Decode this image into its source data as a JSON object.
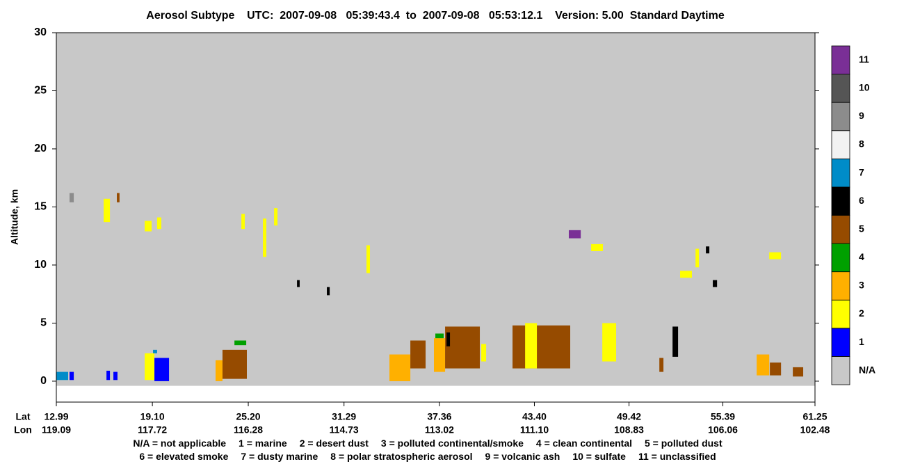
{
  "chart_data": {
    "type": "curtain",
    "title": "Aerosol Subtype    UTC:  2007-09-08   05:39:43.4  to  2007-09-08   05:53:12.1    Version: 5.00  Standard Daytime",
    "ylabel": "Altitude, km",
    "ylim": [
      -1.8,
      30
    ],
    "yticks": [
      0,
      5,
      10,
      15,
      20,
      25,
      30
    ],
    "xlim": [
      12.99,
      61.25
    ],
    "xticks": [
      12.99,
      {
        "value": 19.1,
        "label": "19.10"
      },
      {
        "value": 25.2,
        "label": "25.20"
      },
      31.29,
      37.36,
      {
        "value": 43.4,
        "label": "43.40"
      },
      49.42,
      55.39,
      61.25
    ],
    "x_row_labels": [
      "Lat",
      "Lon"
    ],
    "lon_labels": [
      "119.09",
      "117.72",
      "116.28",
      "114.73",
      "113.02",
      "111.10",
      "108.83",
      "106.06",
      "102.48"
    ],
    "surface_alt": -0.4,
    "legend": [
      {
        "label": "N/A",
        "color": "#c8c8c8"
      },
      {
        "label": "1",
        "color": "#0000ff"
      },
      {
        "label": "2",
        "color": "#ffff00"
      },
      {
        "label": "3",
        "color": "#ffb000"
      },
      {
        "label": "4",
        "color": "#00a000"
      },
      {
        "label": "5",
        "color": "#964b00"
      },
      {
        "label": "6",
        "color": "#000000"
      },
      {
        "label": "7",
        "color": "#008cc8"
      },
      {
        "label": "8",
        "color": "#f2f2f2"
      },
      {
        "label": "9",
        "color": "#8c8c8c"
      },
      {
        "label": "10",
        "color": "#555555"
      },
      {
        "label": "11",
        "color": "#7a2f96"
      }
    ],
    "key": [
      [
        "N/A = not applicable",
        "1 = marine",
        "2 = desert dust",
        "3 = polluted continental/smoke",
        "4 = clean continental",
        "5 = polluted dust"
      ],
      [
        "6 = elevated smoke",
        "7 = dusty marine",
        "8 = polar stratospheric aerosol",
        "9 = volcanic ash",
        "10 = sulfate",
        "11 = unclassified"
      ]
    ],
    "regions": [
      {
        "subtype": 7,
        "lat": [
          12.99,
          13.74
        ],
        "alt": [
          0.1,
          0.8
        ]
      },
      {
        "subtype": 1,
        "lat": [
          13.83,
          14.1
        ],
        "alt": [
          0.1,
          0.8
        ]
      },
      {
        "subtype": 1,
        "lat": [
          16.18,
          16.4
        ],
        "alt": [
          0.1,
          0.9
        ]
      },
      {
        "subtype": 1,
        "lat": [
          16.62,
          16.88
        ],
        "alt": [
          0.1,
          0.8
        ]
      },
      {
        "subtype": 2,
        "lat": [
          18.61,
          19.23
        ],
        "alt": [
          0.1,
          2.4
        ]
      },
      {
        "subtype": 1,
        "lat": [
          19.23,
          20.16
        ],
        "alt": [
          0.0,
          2.0
        ]
      },
      {
        "subtype": 7,
        "lat": [
          19.14,
          19.4
        ],
        "alt": [
          2.4,
          2.7
        ]
      },
      {
        "subtype": 3,
        "lat": [
          23.12,
          23.56
        ],
        "alt": [
          0.0,
          1.8
        ]
      },
      {
        "subtype": 5,
        "lat": [
          23.56,
          25.11
        ],
        "alt": [
          0.2,
          2.7
        ]
      },
      {
        "subtype": 4,
        "lat": [
          24.32,
          25.07
        ],
        "alt": [
          3.1,
          3.5
        ]
      },
      {
        "subtype": 2,
        "lat": [
          16.0,
          16.4
        ],
        "alt": [
          13.7,
          15.7
        ]
      },
      {
        "subtype": 2,
        "lat": [
          18.61,
          19.05
        ],
        "alt": [
          12.9,
          13.8
        ]
      },
      {
        "subtype": 2,
        "lat": [
          19.4,
          19.67
        ],
        "alt": [
          13.1,
          14.1
        ]
      },
      {
        "subtype": 2,
        "lat": [
          24.76,
          24.98
        ],
        "alt": [
          13.1,
          14.4
        ]
      },
      {
        "subtype": 2,
        "lat": [
          26.13,
          26.35
        ],
        "alt": [
          10.7,
          14.0
        ]
      },
      {
        "subtype": 2,
        "lat": [
          26.84,
          27.06
        ],
        "alt": [
          13.4,
          14.9
        ]
      },
      {
        "subtype": 9,
        "lat": [
          13.83,
          14.1
        ],
        "alt": [
          15.4,
          16.2
        ]
      },
      {
        "subtype": 6,
        "lat": [
          28.3,
          28.47
        ],
        "alt": [
          8.1,
          8.7
        ]
      },
      {
        "subtype": 6,
        "lat": [
          30.2,
          30.38
        ],
        "alt": [
          7.4,
          8.1
        ]
      },
      {
        "subtype": 2,
        "lat": [
          32.72,
          32.94
        ],
        "alt": [
          9.3,
          11.7
        ]
      },
      {
        "subtype": 3,
        "lat": [
          34.18,
          35.51
        ],
        "alt": [
          0.0,
          2.3
        ]
      },
      {
        "subtype": 5,
        "lat": [
          35.51,
          36.48
        ],
        "alt": [
          1.1,
          3.5
        ]
      },
      {
        "subtype": 3,
        "lat": [
          37.01,
          37.72
        ],
        "alt": [
          0.8,
          3.7
        ]
      },
      {
        "subtype": 4,
        "lat": [
          37.1,
          37.63
        ],
        "alt": [
          3.7,
          4.1
        ]
      },
      {
        "subtype": 5,
        "lat": [
          37.72,
          39.93
        ],
        "alt": [
          1.1,
          4.7
        ]
      },
      {
        "subtype": 2,
        "lat": [
          40.02,
          40.33
        ],
        "alt": [
          1.7,
          3.2
        ]
      },
      {
        "subtype": 5,
        "lat": [
          42.01,
          45.68
        ],
        "alt": [
          1.1,
          4.8
        ]
      },
      {
        "subtype": 2,
        "lat": [
          42.81,
          43.56
        ],
        "alt": [
          1.1,
          5.0
        ]
      },
      {
        "subtype": 11,
        "lat": [
          45.59,
          46.35
        ],
        "alt": [
          12.3,
          13.0
        ]
      },
      {
        "subtype": 2,
        "lat": [
          47.01,
          47.76
        ],
        "alt": [
          11.2,
          11.8
        ]
      },
      {
        "subtype": 2,
        "lat": [
          47.72,
          48.6
        ],
        "alt": [
          1.7,
          5.0
        ]
      },
      {
        "subtype": 6,
        "lat": [
          52.19,
          52.54
        ],
        "alt": [
          2.1,
          4.7
        ]
      },
      {
        "subtype": 2,
        "lat": [
          52.67,
          53.42
        ],
        "alt": [
          8.9,
          9.5
        ]
      },
      {
        "subtype": 6,
        "lat": [
          54.75,
          55.02
        ],
        "alt": [
          8.1,
          8.7
        ]
      },
      {
        "subtype": 2,
        "lat": [
          58.34,
          59.09
        ],
        "alt": [
          10.5,
          11.1
        ]
      },
      {
        "subtype": 3,
        "lat": [
          57.54,
          58.34
        ],
        "alt": [
          0.5,
          2.3
        ]
      },
      {
        "subtype": 5,
        "lat": [
          58.38,
          59.09
        ],
        "alt": [
          0.5,
          1.6
        ]
      },
      {
        "subtype": 5,
        "lat": [
          59.84,
          60.5
        ],
        "alt": [
          0.4,
          1.2
        ]
      },
      {
        "subtype": 5,
        "lat": [
          51.35,
          51.61
        ],
        "alt": [
          0.8,
          2.0
        ]
      },
      {
        "subtype": 2,
        "lat": [
          53.65,
          53.87
        ],
        "alt": [
          9.8,
          11.4
        ]
      },
      {
        "subtype": 6,
        "lat": [
          37.81,
          38.03
        ],
        "alt": [
          3.0,
          4.2
        ]
      },
      {
        "subtype": 5,
        "lat": [
          16.84,
          17.01
        ],
        "alt": [
          15.4,
          16.2
        ]
      },
      {
        "subtype": 6,
        "lat": [
          54.31,
          54.53
        ],
        "alt": [
          11.0,
          11.6
        ]
      }
    ]
  }
}
